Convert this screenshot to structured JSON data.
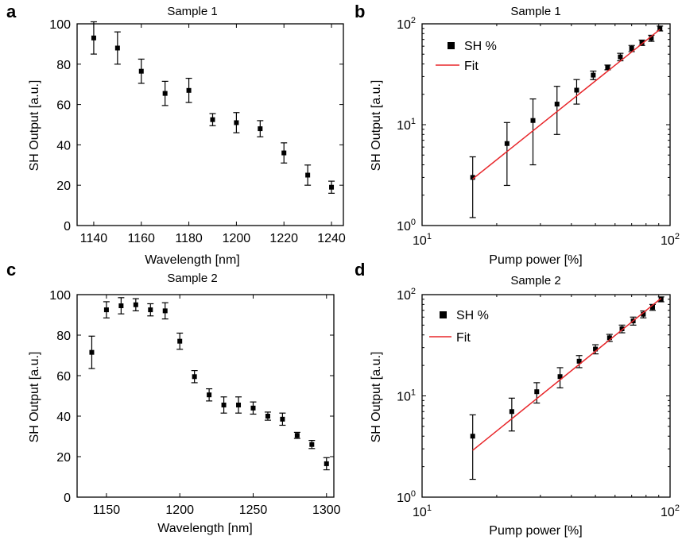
{
  "chart_data": [
    {
      "panel": "a",
      "type": "scatter",
      "title": "Sample 1",
      "xlabel": "Wavelength [nm]",
      "ylabel": "SH Output [a.u.]",
      "xlim": [
        1133,
        1245
      ],
      "ylim": [
        0,
        100
      ],
      "xscale": "linear",
      "yscale": "linear",
      "xticks": [
        1140,
        1160,
        1180,
        1200,
        1220,
        1240
      ],
      "yticks": [
        0,
        20,
        40,
        60,
        80,
        100
      ],
      "series": [
        {
          "x": [
            1140,
            1150,
            1160,
            1170,
            1180,
            1190,
            1200,
            1210,
            1220,
            1230,
            1240
          ],
          "y": [
            93,
            88,
            76.5,
            65.5,
            67,
            52.5,
            51,
            48,
            36,
            25,
            19
          ],
          "err_low": [
            8,
            8,
            6,
            6,
            6,
            3,
            5,
            4,
            5,
            5,
            3
          ],
          "err_high": [
            8,
            8,
            6,
            6,
            6,
            3,
            5,
            4,
            5,
            5,
            3
          ]
        }
      ]
    },
    {
      "panel": "b",
      "type": "scatter",
      "title": "Sample 1",
      "xlabel": "Pump power [%]",
      "ylabel": "SH Output [a.u.]",
      "xlim": [
        10,
        100
      ],
      "ylim": [
        1,
        100
      ],
      "xscale": "log",
      "yscale": "log",
      "xticks": [
        10,
        100
      ],
      "yticks": [
        1,
        10,
        100
      ],
      "xtick_labels": [
        {
          "base": "10",
          "exp": "1"
        },
        {
          "base": "10",
          "exp": "2"
        }
      ],
      "ytick_labels": [
        {
          "base": "10",
          "exp": "0"
        },
        {
          "base": "10",
          "exp": "1"
        },
        {
          "base": "10",
          "exp": "2"
        }
      ],
      "legend": {
        "position": "top-left",
        "entries": [
          "SH %",
          "Fit"
        ]
      },
      "series": [
        {
          "name": "SH %",
          "x": [
            16,
            22,
            28,
            35,
            42,
            49,
            56,
            63,
            70,
            77,
            84,
            91
          ],
          "y": [
            3,
            6.5,
            11,
            16,
            22,
            31,
            37,
            47,
            57,
            65,
            72,
            90
          ],
          "err_low": [
            1.8,
            4,
            7,
            8,
            6,
            3,
            2,
            4,
            4,
            4,
            5,
            5
          ],
          "err_high": [
            1.8,
            4,
            7,
            8,
            6,
            3,
            2,
            4,
            4,
            4,
            5,
            5
          ]
        },
        {
          "name": "Fit",
          "x": [
            16,
            91
          ],
          "y": [
            2.9,
            88
          ]
        }
      ]
    },
    {
      "panel": "c",
      "type": "scatter",
      "title": "Sample 2",
      "xlabel": "Wavelength [nm]",
      "ylabel": "SH Output [a.u.]",
      "xlim": [
        1130,
        1305
      ],
      "ylim": [
        0,
        100
      ],
      "xscale": "linear",
      "yscale": "linear",
      "xticks": [
        1150,
        1200,
        1250,
        1300
      ],
      "yticks": [
        0,
        20,
        40,
        60,
        80,
        100
      ],
      "series": [
        {
          "x": [
            1140,
            1150,
            1160,
            1170,
            1180,
            1190,
            1200,
            1210,
            1220,
            1230,
            1240,
            1250,
            1260,
            1270,
            1280,
            1290,
            1300
          ],
          "y": [
            71.5,
            92.5,
            94.5,
            95,
            92.5,
            92,
            77,
            59.5,
            50.5,
            45.5,
            45.5,
            44,
            40,
            38.5,
            30.5,
            26,
            16.5
          ],
          "err_low": [
            8,
            4,
            4,
            3,
            3,
            4,
            4,
            3,
            3,
            4,
            4,
            3,
            2,
            3,
            1.5,
            2,
            3
          ],
          "err_high": [
            8,
            4,
            4,
            3,
            3,
            4,
            4,
            3,
            3,
            4,
            4,
            3,
            2,
            3,
            1.5,
            2,
            3
          ]
        }
      ]
    },
    {
      "panel": "d",
      "type": "scatter",
      "title": "Sample 2",
      "xlabel": "Pump power [%]",
      "ylabel": "SH Output [a.u.]",
      "xlim": [
        10,
        100
      ],
      "ylim": [
        1,
        100
      ],
      "xscale": "log",
      "yscale": "log",
      "xticks": [
        10,
        100
      ],
      "yticks": [
        1,
        10,
        100
      ],
      "xtick_labels": [
        {
          "base": "10",
          "exp": "1"
        },
        {
          "base": "10",
          "exp": "2"
        }
      ],
      "ytick_labels": [
        {
          "base": "10",
          "exp": "0"
        },
        {
          "base": "10",
          "exp": "1"
        },
        {
          "base": "10",
          "exp": "2"
        }
      ],
      "legend": {
        "position": "top-left",
        "entries": [
          "SH %",
          "Fit"
        ]
      },
      "series": [
        {
          "name": "SH %",
          "x": [
            16,
            23,
            29,
            36,
            43,
            50,
            57,
            64,
            71,
            78,
            85,
            92
          ],
          "y": [
            4,
            7,
            11,
            15.5,
            22,
            29,
            37.5,
            46,
            55,
            64,
            75,
            90
          ],
          "err_low": [
            2.5,
            2.5,
            2.5,
            3.5,
            3,
            3,
            3,
            4,
            5,
            5,
            5,
            5
          ],
          "err_high": [
            2.5,
            2.5,
            2.5,
            3.5,
            3,
            3,
            3,
            4,
            5,
            5,
            5,
            5
          ]
        },
        {
          "name": "Fit",
          "x": [
            16,
            92
          ],
          "y": [
            2.9,
            92
          ]
        }
      ]
    }
  ],
  "colors": {
    "markers": "#000000",
    "fit": "#e8262a",
    "axes": "#000000"
  }
}
